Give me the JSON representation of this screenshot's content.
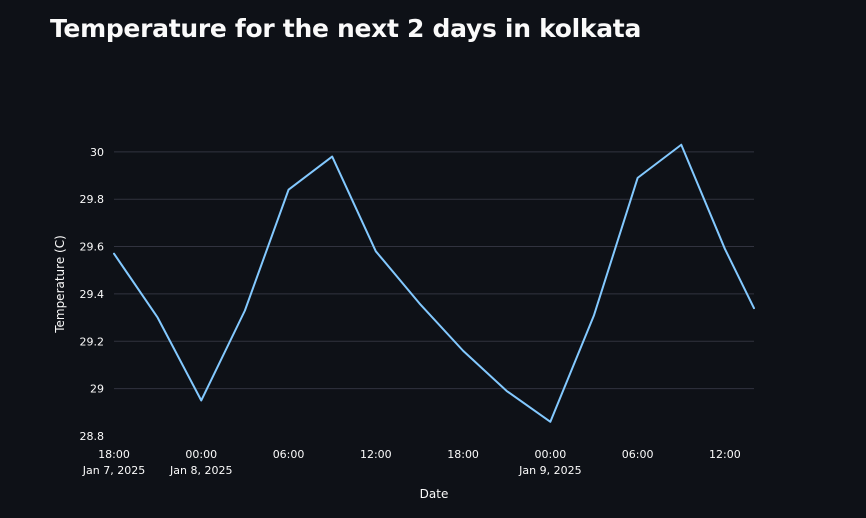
{
  "page": {
    "title": "Temperature for the next 2 days in kolkata"
  },
  "chart_data": {
    "type": "line",
    "title": "",
    "xlabel": "Date",
    "ylabel": "Temperature (C)",
    "xlim": [
      "2025-01-07 18:00",
      "2025-01-09 14:00"
    ],
    "ylim": [
      28.8,
      30.05
    ],
    "grid": true,
    "x_ticks": [
      {
        "at": "2025-01-07 18:00",
        "label": "18:00",
        "sublabel": "Jan 7, 2025"
      },
      {
        "at": "2025-01-08 00:00",
        "label": "00:00",
        "sublabel": "Jan 8, 2025"
      },
      {
        "at": "2025-01-08 06:00",
        "label": "06:00",
        "sublabel": ""
      },
      {
        "at": "2025-01-08 12:00",
        "label": "12:00",
        "sublabel": ""
      },
      {
        "at": "2025-01-08 18:00",
        "label": "18:00",
        "sublabel": ""
      },
      {
        "at": "2025-01-09 00:00",
        "label": "00:00",
        "sublabel": "Jan 9, 2025"
      },
      {
        "at": "2025-01-09 06:00",
        "label": "06:00",
        "sublabel": ""
      },
      {
        "at": "2025-01-09 12:00",
        "label": "12:00",
        "sublabel": ""
      }
    ],
    "y_ticks": [
      {
        "value": 28.8,
        "label": "28.8"
      },
      {
        "value": 29.0,
        "label": "29"
      },
      {
        "value": 29.2,
        "label": "29.2"
      },
      {
        "value": 29.4,
        "label": "29.4"
      },
      {
        "value": 29.6,
        "label": "29.6"
      },
      {
        "value": 29.8,
        "label": "29.8"
      },
      {
        "value": 30.0,
        "label": "30"
      }
    ],
    "series": [
      {
        "color": "#83c9ff",
        "x": [
          "2025-01-07 18:00",
          "2025-01-07 21:00",
          "2025-01-08 00:00",
          "2025-01-08 03:00",
          "2025-01-08 06:00",
          "2025-01-08 09:00",
          "2025-01-08 12:00",
          "2025-01-08 15:00",
          "2025-01-08 18:00",
          "2025-01-08 21:00",
          "2025-01-09 00:00",
          "2025-01-09 03:00",
          "2025-01-09 06:00",
          "2025-01-09 09:00",
          "2025-01-09 12:00",
          "2025-01-09 14:00"
        ],
        "values": [
          29.57,
          29.3,
          28.95,
          29.33,
          29.84,
          29.98,
          29.58,
          29.36,
          29.16,
          28.99,
          28.86,
          29.31,
          29.89,
          30.03,
          29.59,
          29.34
        ]
      }
    ],
    "colors": {
      "background": "#0e1117",
      "grid": "#31333f",
      "text": "#fafafa"
    }
  }
}
